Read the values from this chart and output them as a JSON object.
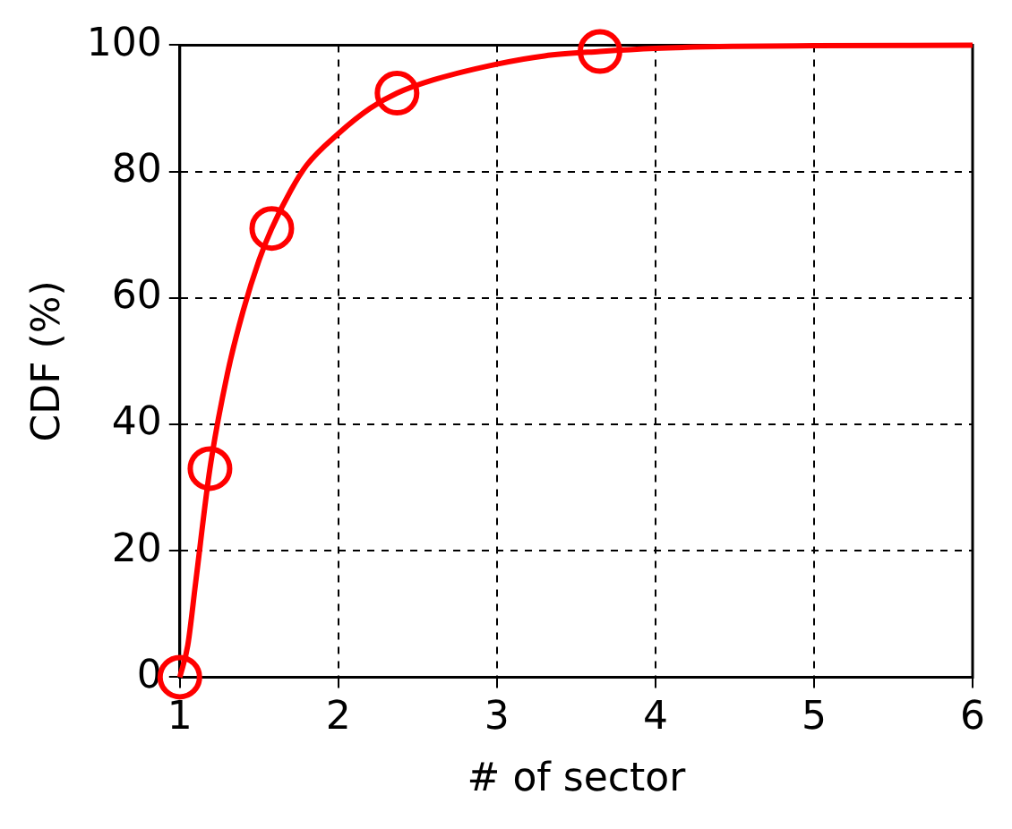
{
  "chart_data": {
    "type": "line",
    "xlabel": "# of sector",
    "ylabel": "CDF (%)",
    "xlim": [
      1,
      6
    ],
    "xticks": [
      1,
      2,
      3,
      4,
      5,
      6
    ],
    "ylim": [
      0,
      100
    ],
    "yticks": [
      0,
      20,
      40,
      60,
      80,
      100
    ],
    "grid": true,
    "legend": false,
    "line_style": "solid",
    "series": [
      {
        "color": "#ff0000",
        "marker": "none",
        "x": [
          1,
          1.05,
          1.1,
          1.19,
          1.3,
          1.4,
          1.5,
          1.58,
          1.7,
          1.8,
          2.0,
          2.2,
          2.37,
          2.6,
          3.0,
          3.3,
          3.65,
          4.0,
          4.5,
          5.0,
          6.0
        ],
        "values": [
          0,
          5,
          15,
          33,
          48,
          58,
          66,
          71,
          77,
          81,
          86,
          90,
          92.4,
          94.5,
          97,
          98.3,
          99,
          99.5,
          99.8,
          99.9,
          100
        ]
      },
      {
        "type": "scatter",
        "color": "#ff0000",
        "marker": "circle",
        "x": [
          1,
          1.19,
          1.58,
          2.37,
          3.65
        ],
        "values": [
          0,
          33,
          71,
          92.4,
          99
        ]
      }
    ]
  }
}
